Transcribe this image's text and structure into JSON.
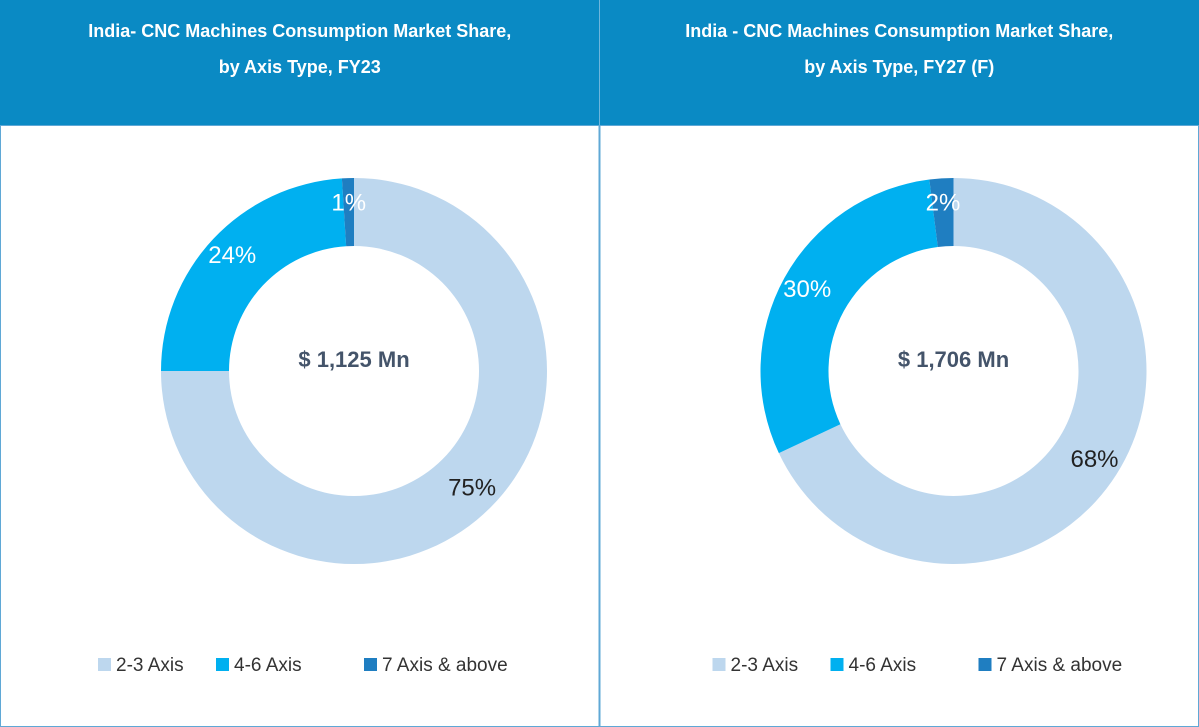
{
  "chart_data": [
    {
      "type": "donut",
      "title": [
        "India- CNC Machines Consumption Market Share,",
        "by Axis Type, FY23"
      ],
      "center_label": "$ 1,125 Mn",
      "categories": [
        "2-3 Axis",
        "4-6 Axis",
        "7 Axis & above"
      ],
      "values": [
        75,
        24,
        1
      ],
      "value_labels": [
        "75%",
        "24%",
        "1%"
      ],
      "colors": [
        "#bdd7ee",
        "#00b0f0",
        "#1f7ec1"
      ],
      "legend": "bottom"
    },
    {
      "type": "donut",
      "title": [
        "India - CNC Machines Consumption Market Share,",
        "by Axis Type, FY27 (F)"
      ],
      "center_label": "$ 1,706 Mn",
      "categories": [
        "2-3 Axis",
        "4-6 Axis",
        "7 Axis & above"
      ],
      "values": [
        68,
        30,
        2
      ],
      "value_labels": [
        "68%",
        "30%",
        "2%"
      ],
      "colors": [
        "#bdd7ee",
        "#00b0f0",
        "#1f7ec1"
      ],
      "legend": "bottom"
    }
  ]
}
